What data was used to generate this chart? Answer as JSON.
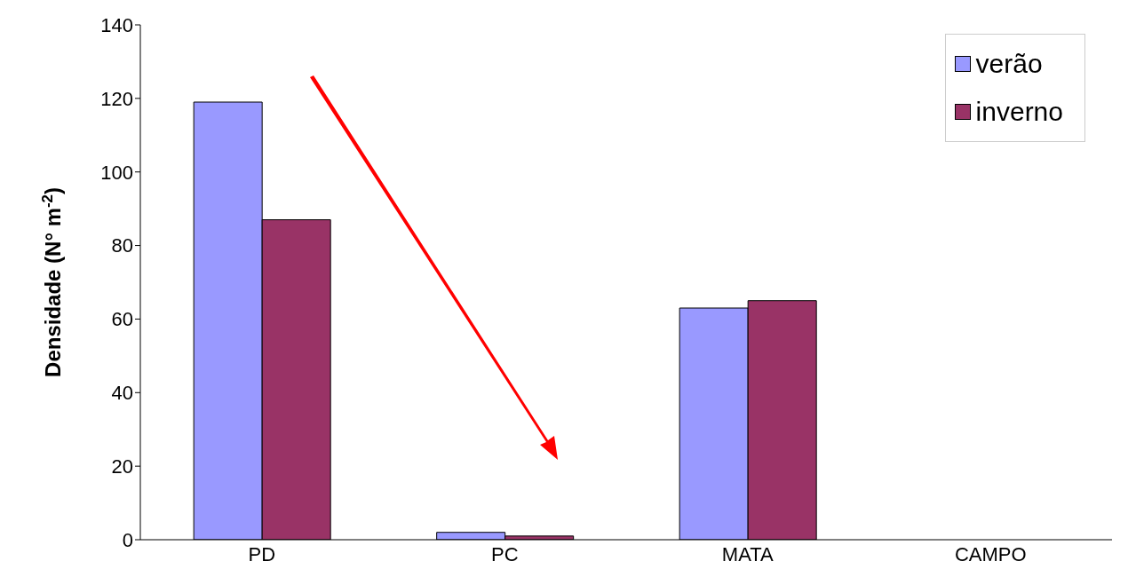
{
  "chart_data": {
    "type": "bar",
    "ylabel": "Densidade (N° m$^{-2}$)",
    "categories": [
      "PD",
      "PC",
      "MATA",
      "CAMPO"
    ],
    "series": [
      {
        "name": "verão",
        "color": "#9999ff",
        "values": [
          119,
          2,
          63,
          0
        ]
      },
      {
        "name": "inverno",
        "color": "#993366",
        "values": [
          87,
          1,
          65,
          0
        ]
      }
    ],
    "ylim": [
      0,
      140
    ],
    "yticks": [
      0,
      20,
      40,
      60,
      80,
      100,
      120,
      140
    ],
    "legend": "top right"
  }
}
